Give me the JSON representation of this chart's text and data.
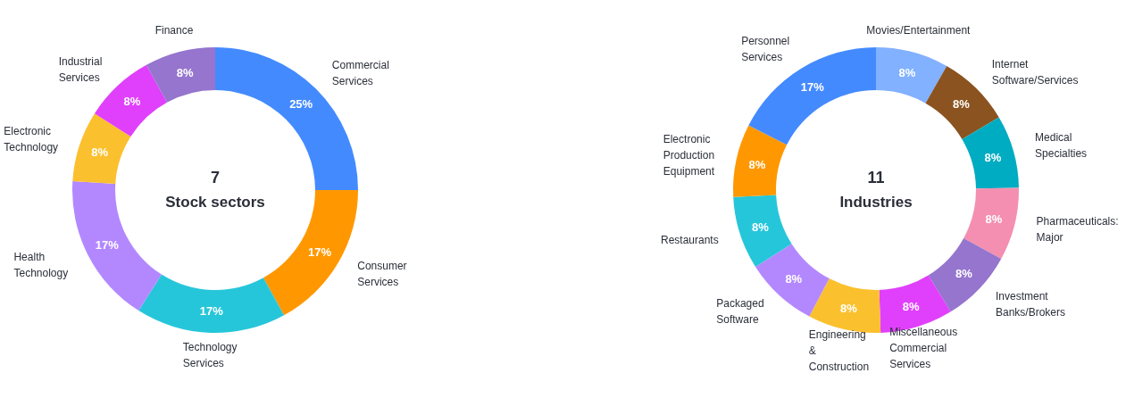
{
  "chart_data": [
    {
      "type": "donut",
      "annotations": [
        "7",
        "Stock sectors"
      ],
      "categories": [
        "Commercial Services",
        "Consumer Services",
        "Technology Services",
        "Health Technology",
        "Electronic Technology",
        "Industrial Services",
        "Finance"
      ],
      "values": [
        25,
        17,
        17,
        17,
        8,
        8,
        8
      ],
      "value_labels": [
        "25%",
        "17%",
        "17%",
        "17%",
        "8%",
        "8%",
        "8%"
      ],
      "colors": [
        "#448aff",
        "#ff9800",
        "#26c6da",
        "#b388ff",
        "#fbc02d",
        "#e040fb",
        "#9575cd"
      ]
    },
    {
      "type": "donut",
      "annotations": [
        "11",
        "Industries"
      ],
      "categories": [
        "Movies/Entertainment",
        "Internet Software/Services",
        "Medical Specialties",
        "Pharmaceuticals: Major",
        "Investment Banks/Brokers",
        "Miscellaneous Commercial Services",
        "Engineering & Construction",
        "Packaged Software",
        "Restaurants",
        "Electronic Production Equipment",
        "Personnel Services"
      ],
      "values": [
        8,
        8,
        8,
        8,
        8,
        8,
        8,
        8,
        8,
        8,
        17
      ],
      "value_labels": [
        "8%",
        "8%",
        "8%",
        "8%",
        "8%",
        "8%",
        "8%",
        "8%",
        "8%",
        "8%",
        "17%"
      ],
      "colors": [
        "#82b1ff",
        "#8b531f",
        "#00acc1",
        "#f48fb1",
        "#9575cd",
        "#e040fb",
        "#fbc02d",
        "#b388ff",
        "#26c6da",
        "#ff9800",
        "#448aff"
      ]
    }
  ]
}
